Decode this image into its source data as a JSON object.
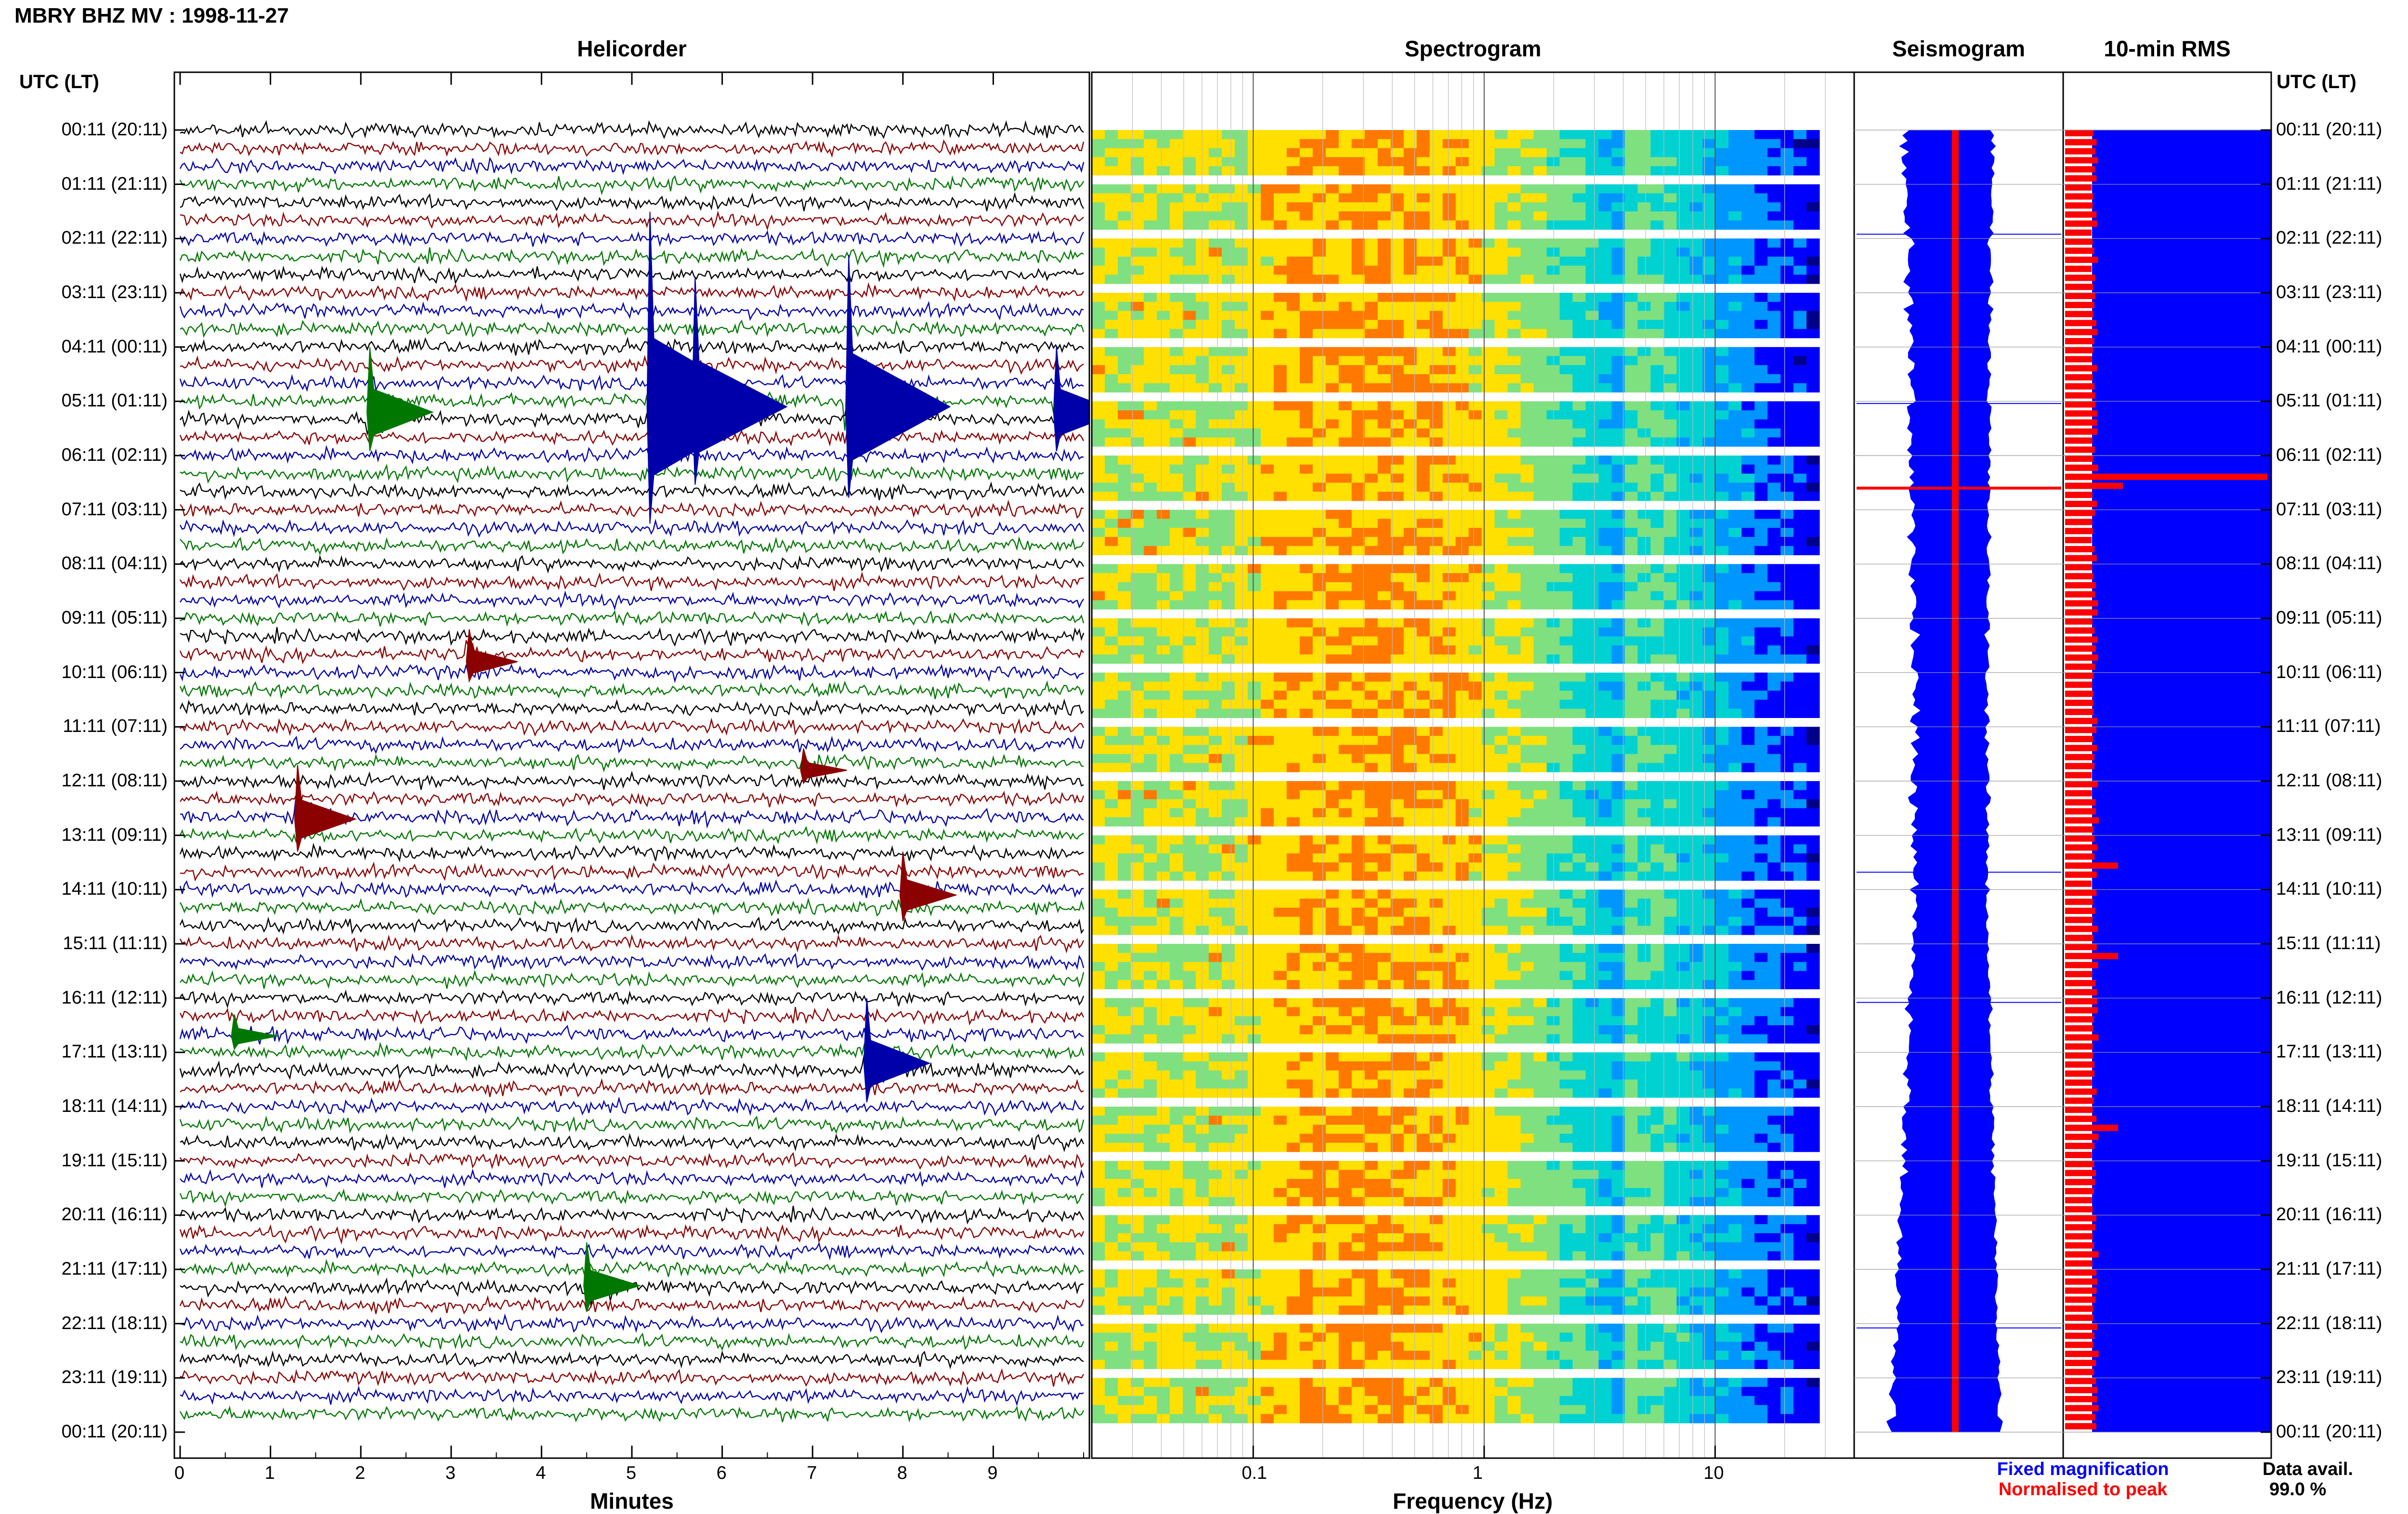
{
  "header": {
    "title": "MBRY BHZ MV : 1998-11-27"
  },
  "time_axis_label": "UTC (LT)",
  "chart_data": [
    {
      "type": "line",
      "title": "Helicorder",
      "xlabel": "Minutes",
      "xlim": [
        0,
        10
      ],
      "xticks": [
        "0",
        "1",
        "2",
        "3",
        "4",
        "5",
        "6",
        "7",
        "8",
        "9"
      ],
      "rows": 72,
      "colors": {
        "trace_cycle": [
          "#000000",
          "#8b0000",
          "#0000aa",
          "#007700"
        ]
      },
      "time_labels": [
        "00:11 (20:11)",
        "01:11 (21:11)",
        "02:11 (22:11)",
        "03:11 (23:11)",
        "04:11 (00:11)",
        "05:11 (01:11)",
        "06:11 (02:11)",
        "07:11 (03:11)",
        "08:11 (04:11)",
        "09:11 (05:11)",
        "10:11 (06:11)",
        "11:11 (07:11)",
        "12:11 (08:11)",
        "13:11 (09:11)",
        "14:11 (10:11)",
        "15:11 (11:11)",
        "16:11 (12:11)",
        "17:11 (13:11)",
        "18:11 (14:11)",
        "19:11 (15:11)",
        "20:11 (16:11)",
        "21:11 (17:11)",
        "22:11 (18:11)",
        "23:11 (19:11)",
        "00:11 (20:11)"
      ],
      "events": [
        {
          "hour": 5.1,
          "minute": 5.2,
          "amp": 9,
          "color": "#0000aa"
        },
        {
          "hour": 5.1,
          "minute": 5.7,
          "amp": 6,
          "color": "#0000aa"
        },
        {
          "hour": 5.1,
          "minute": 7.4,
          "amp": 7,
          "color": "#0000aa"
        },
        {
          "hour": 5.2,
          "minute": 2.1,
          "amp": 3,
          "color": "#007700"
        },
        {
          "hour": 5.2,
          "minute": 9.7,
          "amp": 3,
          "color": "#0000aa"
        },
        {
          "hour": 9.8,
          "minute": 3.2,
          "amp": 1.5,
          "color": "#8b0000"
        },
        {
          "hour": 11.8,
          "minute": 6.9,
          "amp": 1,
          "color": "#8b0000"
        },
        {
          "hour": 12.7,
          "minute": 1.3,
          "amp": 2.5,
          "color": "#8b0000"
        },
        {
          "hour": 14.1,
          "minute": 8.0,
          "amp": 2,
          "color": "#8b0000"
        },
        {
          "hour": 17.2,
          "minute": 7.6,
          "amp": 3,
          "color": "#0000aa"
        },
        {
          "hour": 16.7,
          "minute": 0.6,
          "amp": 1,
          "color": "#007700"
        },
        {
          "hour": 21.3,
          "minute": 4.5,
          "amp": 2,
          "color": "#007700"
        }
      ]
    },
    {
      "type": "heatmap",
      "title": "Spectrogram",
      "xlabel": "Frequency (Hz)",
      "x_scale": "log",
      "xlim": [
        0.02,
        40
      ],
      "xticks": [
        "0.1",
        "1",
        "10"
      ],
      "colormap": [
        "#00008b",
        "#0000ff",
        "#0096ff",
        "#00d2d2",
        "#7fe07f",
        "#ffe000",
        "#ff7800",
        "#c80000"
      ]
    },
    {
      "type": "area",
      "title": "Seismogram",
      "colors": {
        "fixed": "#0000ff",
        "normalised": "#ff0000"
      },
      "legend": [
        "Fixed magnification",
        "Normalised to peak"
      ]
    },
    {
      "type": "bar",
      "title": "10-min RMS",
      "colors": {
        "fixed": "#0000ff",
        "normalised": "#ff0000"
      }
    }
  ],
  "legend": {
    "fixed": "Fixed magnification",
    "normalised": "Normalised to peak",
    "fixed_color": "#0000ff",
    "normalised_color": "#ff0000"
  },
  "data_avail": {
    "label": "Data avail.",
    "value": "99.0 %"
  }
}
